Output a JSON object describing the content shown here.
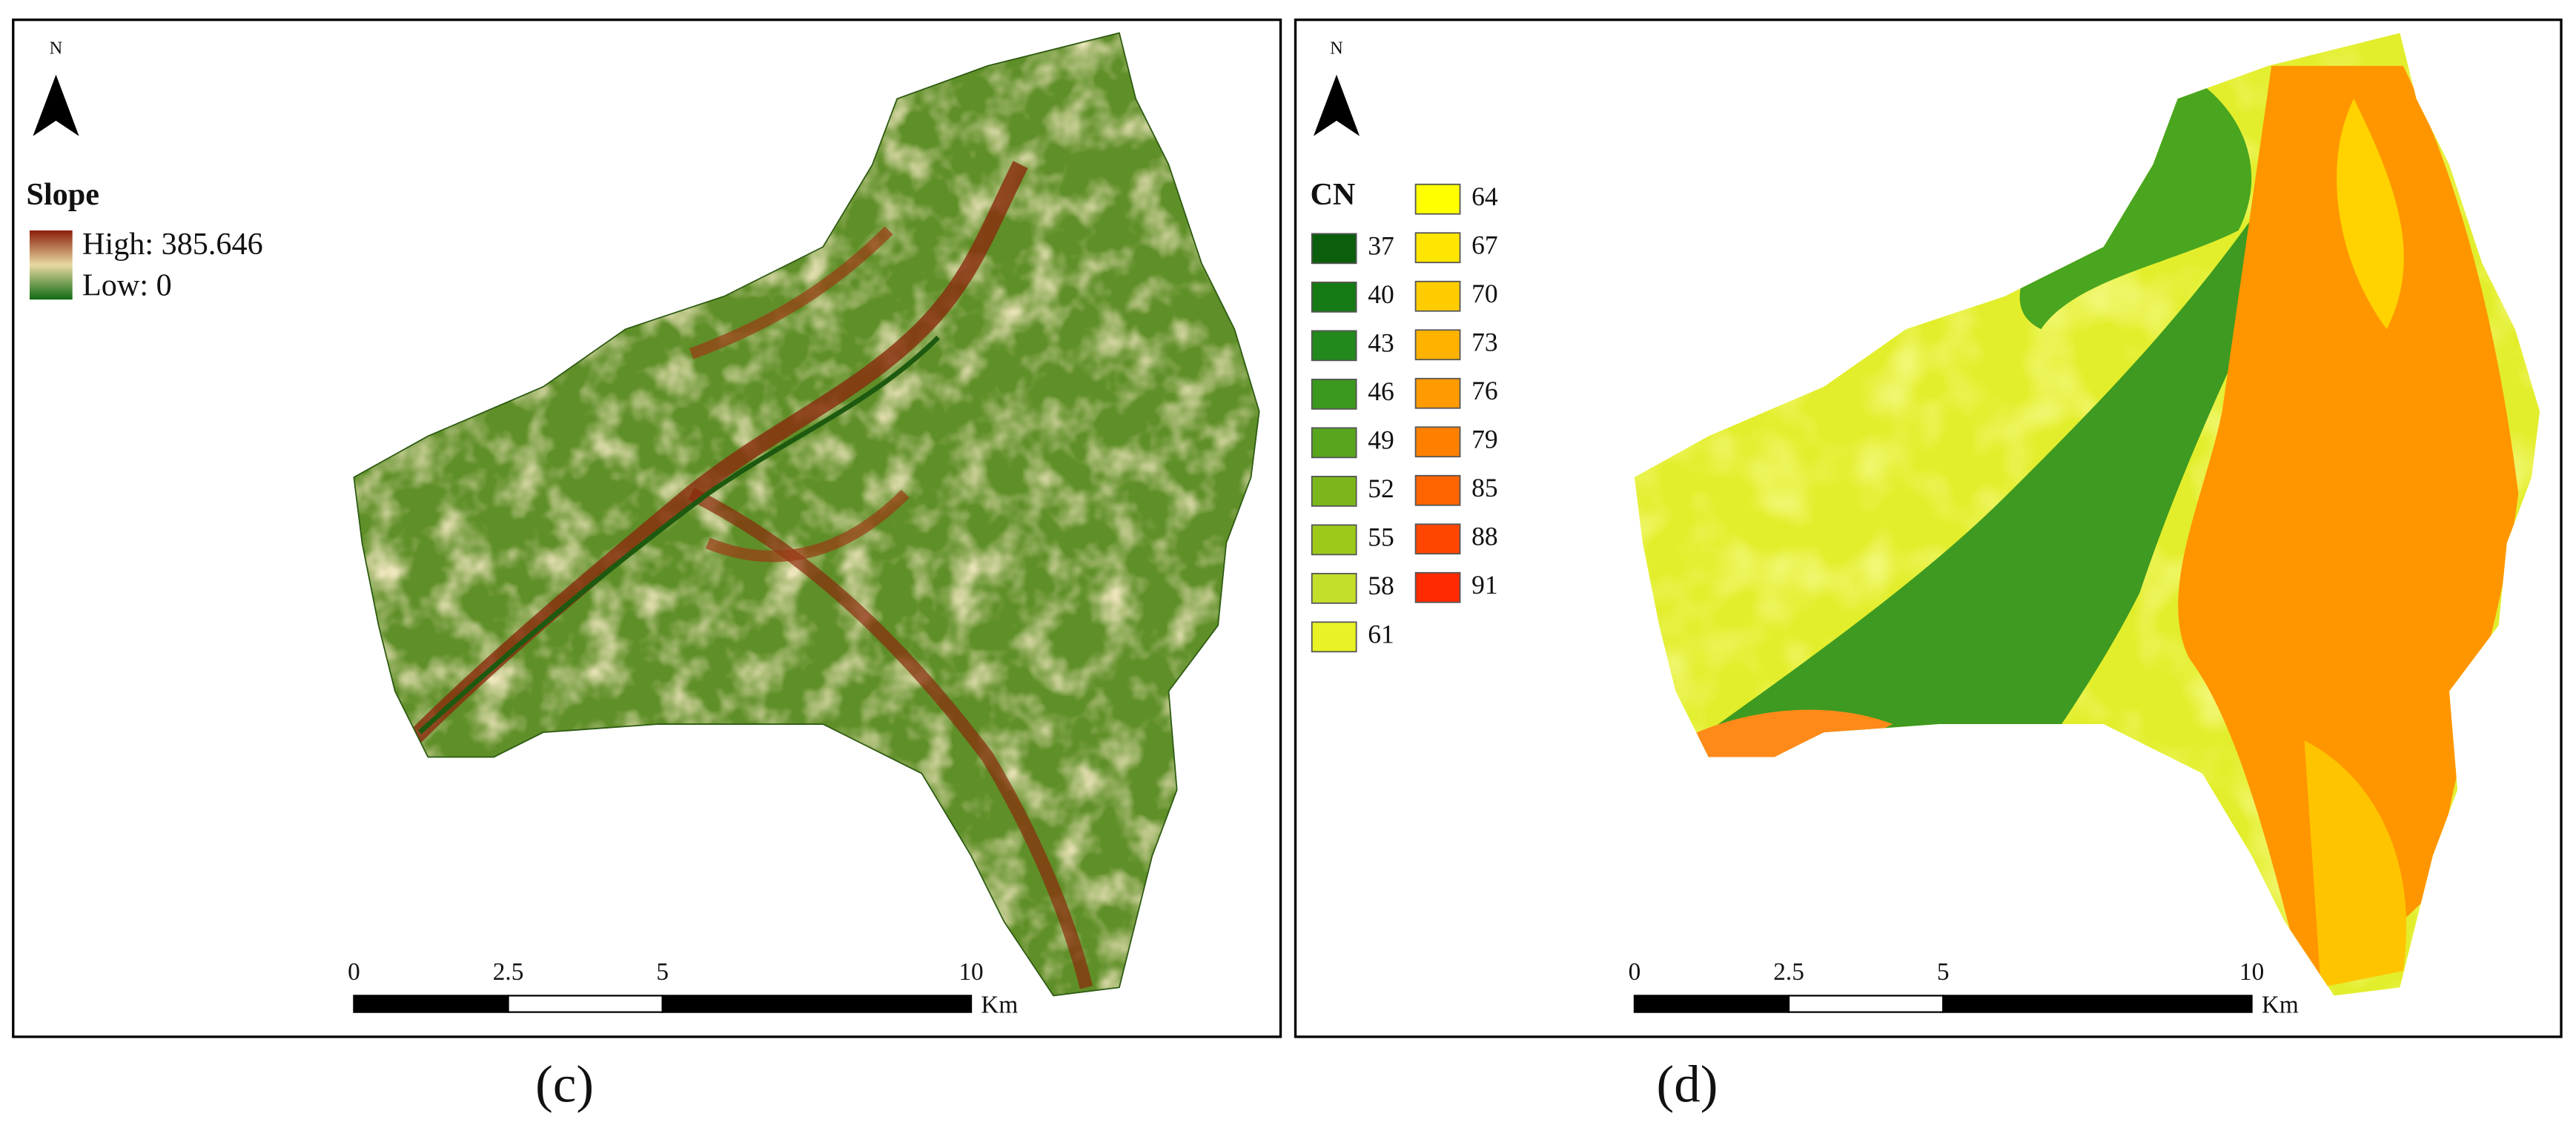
{
  "panels": [
    {
      "north": "N",
      "legend": {
        "title": "Slope",
        "high": "High: 385.646",
        "low": "Low: 0"
      },
      "scale_bar": {
        "ticks": [
          0,
          2.5,
          5,
          10
        ],
        "unit": "Km"
      },
      "caption": "(c)"
    },
    {
      "north": "N",
      "legend": {
        "title": "CN",
        "items": [
          {
            "label": "37",
            "color": "#0b5e0b"
          },
          {
            "label": "40",
            "color": "#167a14"
          },
          {
            "label": "43",
            "color": "#23891c"
          },
          {
            "label": "46",
            "color": "#3a981e"
          },
          {
            "label": "49",
            "color": "#58a61d"
          },
          {
            "label": "52",
            "color": "#7bb71a"
          },
          {
            "label": "55",
            "color": "#9dca1a"
          },
          {
            "label": "58",
            "color": "#c4de2a"
          },
          {
            "label": "61",
            "color": "#e8f224"
          },
          {
            "label": "64",
            "color": "#ffff00"
          },
          {
            "label": "67",
            "color": "#ffe600"
          },
          {
            "label": "70",
            "color": "#ffcc00"
          },
          {
            "label": "73",
            "color": "#ffb300"
          },
          {
            "label": "76",
            "color": "#ff9a00"
          },
          {
            "label": "79",
            "color": "#ff8000"
          },
          {
            "label": "85",
            "color": "#ff6400"
          },
          {
            "label": "88",
            "color": "#ff4600"
          },
          {
            "label": "91",
            "color": "#ff2a00"
          }
        ]
      },
      "scale_bar": {
        "ticks": [
          0,
          2.5,
          5,
          10
        ],
        "unit": "Km"
      },
      "caption": "(d)"
    }
  ]
}
